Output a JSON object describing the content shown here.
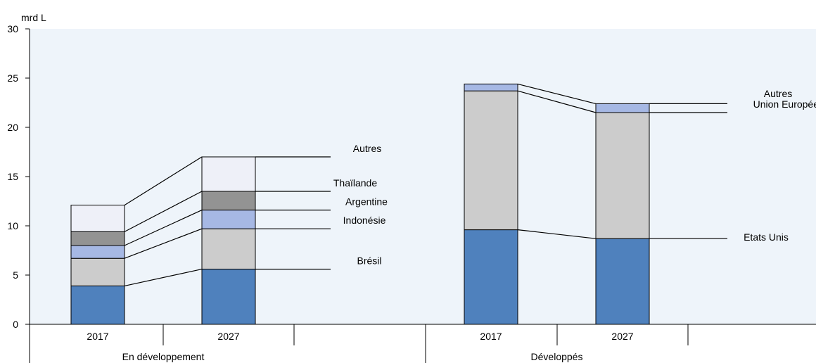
{
  "chart_data": {
    "type": "bar",
    "subtype": "stacked",
    "y_unit": "mrd L",
    "ylim": [
      0,
      30
    ],
    "y_ticks": [
      0,
      5,
      10,
      15,
      20,
      25,
      30
    ],
    "grid": false,
    "background_color": "#eef4fa",
    "groups": [
      {
        "label": "En développement",
        "years": [
          "2017",
          "2027"
        ],
        "series": [
          {
            "name": "Brésil",
            "values": [
              3.9,
              5.6
            ],
            "color": "#4f81bd"
          },
          {
            "name": "Indonésie",
            "values": [
              2.8,
              4.1
            ],
            "color": "#cccccc"
          },
          {
            "name": "Argentine",
            "values": [
              1.3,
              1.9
            ],
            "color": "#a6b8e4"
          },
          {
            "name": "Thaïlande",
            "values": [
              1.4,
              1.9
            ],
            "color": "#939393"
          },
          {
            "name": "Autres",
            "values": [
              2.7,
              3.5
            ],
            "color": "#eef0f8"
          }
        ]
      },
      {
        "label": "Développés",
        "years": [
          "2017",
          "2027"
        ],
        "series": [
          {
            "name": "Etats Unis",
            "values": [
              9.6,
              8.7
            ],
            "color": "#4f81bd"
          },
          {
            "name": "Union Européenne",
            "values": [
              14.1,
              12.8
            ],
            "color": "#cccccc"
          },
          {
            "name": "Autres",
            "values": [
              0.7,
              0.9
            ],
            "color": "#a6b8e4"
          }
        ]
      }
    ]
  }
}
